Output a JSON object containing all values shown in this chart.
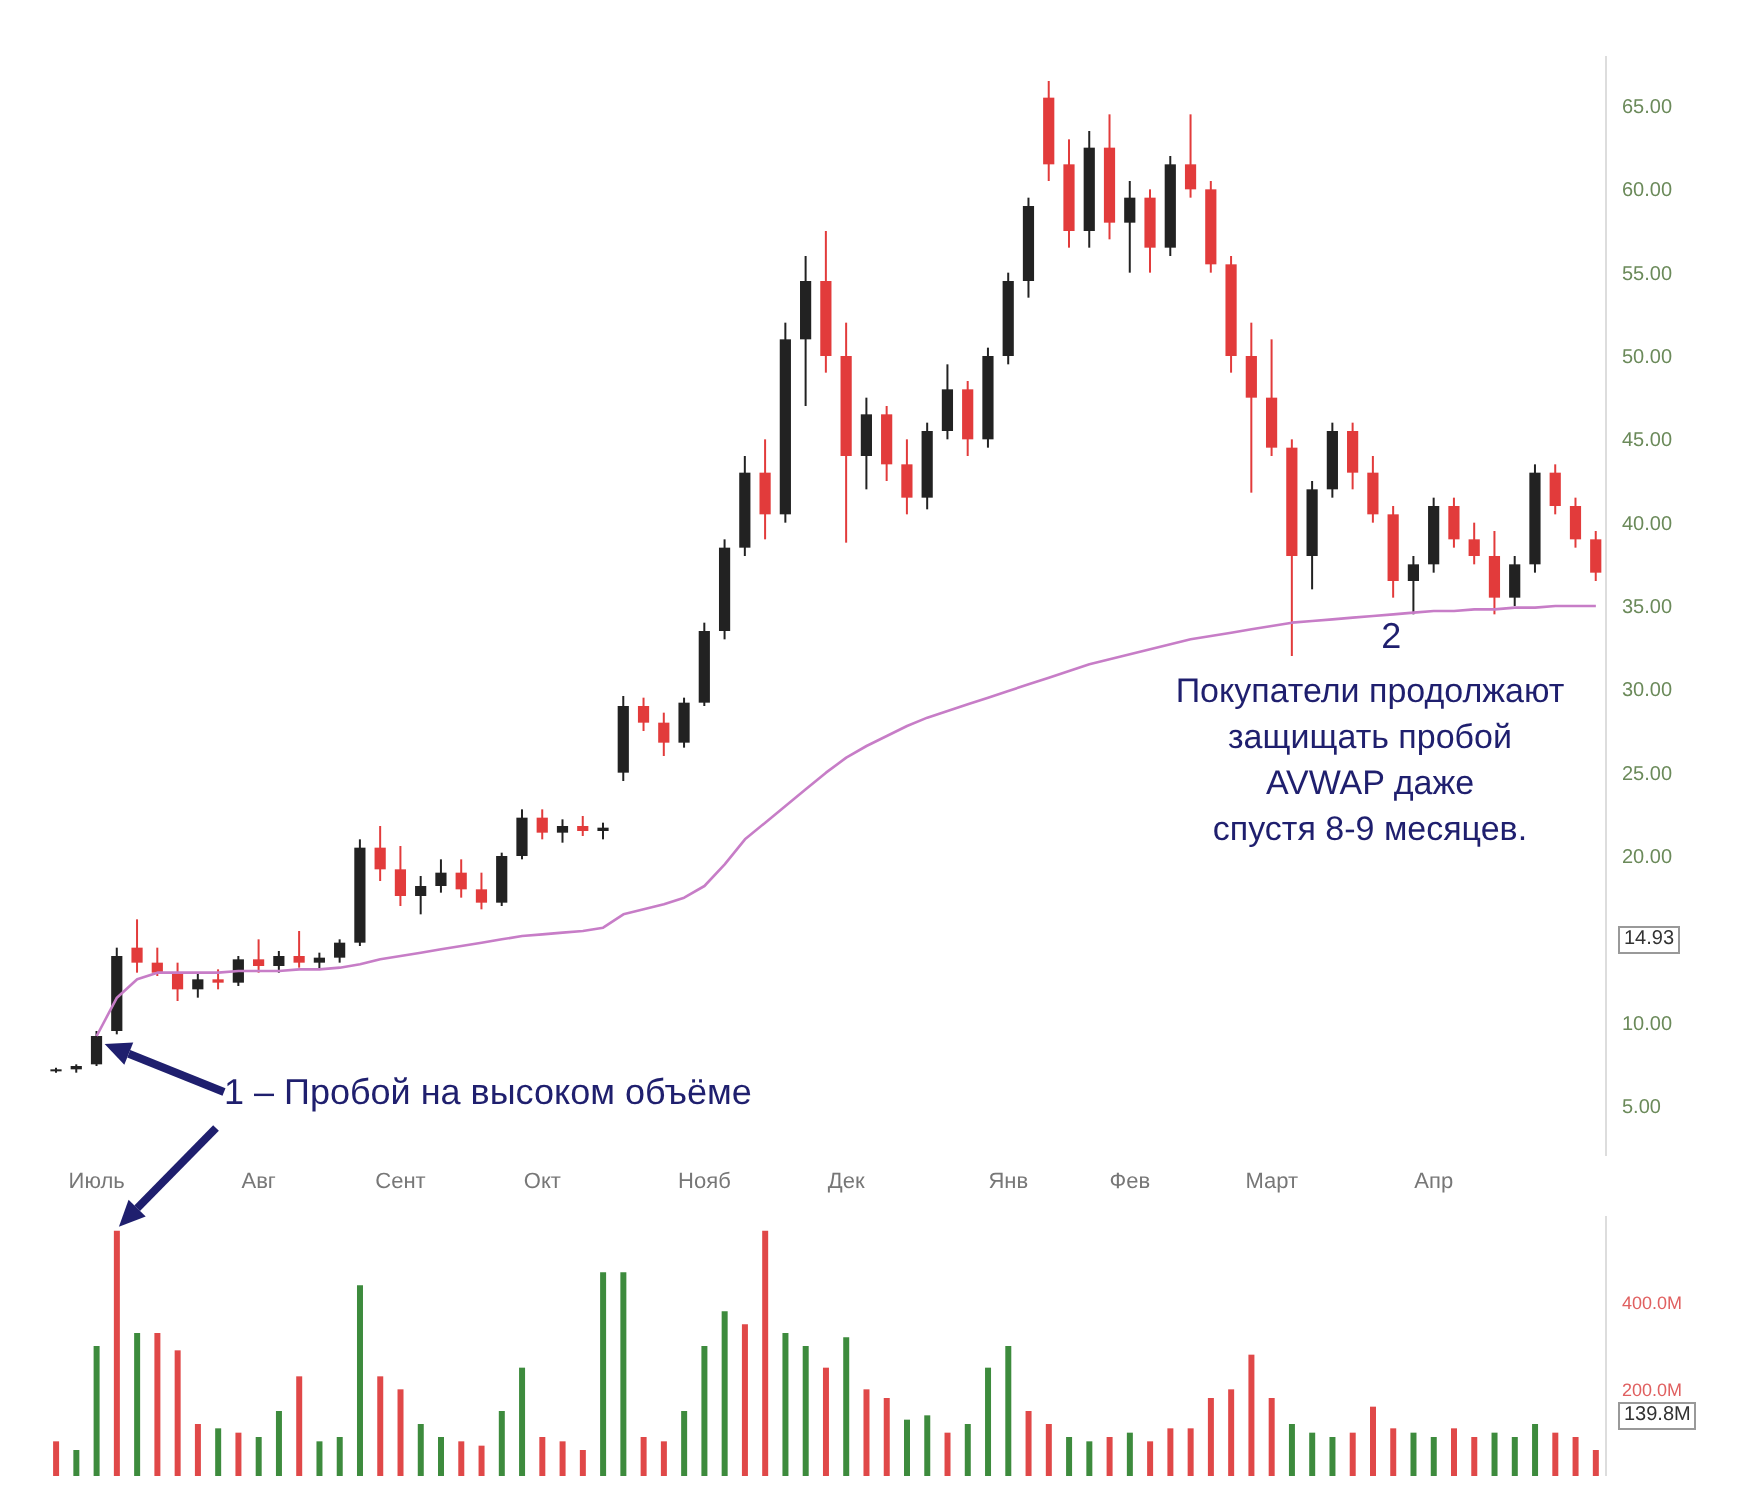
{
  "chart_data": [
    {
      "type": "candlestick",
      "categories": [
        null,
        null,
        "Июль",
        null,
        null,
        null,
        null,
        null,
        null,
        null,
        "Авг",
        null,
        null,
        null,
        null,
        null,
        null,
        "Сент",
        null,
        null,
        null,
        null,
        null,
        null,
        "Окт",
        null,
        null,
        null,
        null,
        null,
        null,
        null,
        "Нояб",
        null,
        null,
        null,
        null,
        null,
        null,
        "Дек",
        null,
        null,
        null,
        null,
        null,
        null,
        null,
        "Янв",
        null,
        null,
        null,
        null,
        null,
        "Фев",
        null,
        null,
        null,
        null,
        null,
        null,
        "Март",
        null,
        null,
        null,
        null,
        null,
        null,
        null,
        "Апр",
        null,
        null,
        null,
        null,
        null,
        null,
        null,
        null
      ],
      "ohlc": [
        [
          7.1,
          7.3,
          7.0,
          7.2
        ],
        [
          7.2,
          7.5,
          7.0,
          7.4
        ],
        [
          7.5,
          9.5,
          7.4,
          9.2
        ],
        [
          9.5,
          14.5,
          9.3,
          14.0
        ],
        [
          14.5,
          16.2,
          13.0,
          13.6
        ],
        [
          13.6,
          14.5,
          12.8,
          13.0
        ],
        [
          13.0,
          13.6,
          11.3,
          12.0
        ],
        [
          12.0,
          13.0,
          11.5,
          12.6
        ],
        [
          12.6,
          13.2,
          12.0,
          12.4
        ],
        [
          12.4,
          14.0,
          12.2,
          13.8
        ],
        [
          13.8,
          15.0,
          13.0,
          13.4
        ],
        [
          13.4,
          14.3,
          13.0,
          14.0
        ],
        [
          14.0,
          15.5,
          13.3,
          13.6
        ],
        [
          13.6,
          14.2,
          13.2,
          13.9
        ],
        [
          13.9,
          15.0,
          13.6,
          14.8
        ],
        [
          14.8,
          21.0,
          14.6,
          20.5
        ],
        [
          20.5,
          21.8,
          18.5,
          19.2
        ],
        [
          19.2,
          20.6,
          17.0,
          17.6
        ],
        [
          17.6,
          18.8,
          16.5,
          18.2
        ],
        [
          18.2,
          19.8,
          17.8,
          19.0
        ],
        [
          19.0,
          19.8,
          17.5,
          18.0
        ],
        [
          18.0,
          19.0,
          16.8,
          17.2
        ],
        [
          17.2,
          20.2,
          17.0,
          20.0
        ],
        [
          20.0,
          22.8,
          19.8,
          22.3
        ],
        [
          22.3,
          22.8,
          21.0,
          21.4
        ],
        [
          21.4,
          22.2,
          20.8,
          21.8
        ],
        [
          21.8,
          22.4,
          21.2,
          21.5
        ],
        [
          21.5,
          22.0,
          21.0,
          21.7
        ],
        [
          25.0,
          29.6,
          24.5,
          29.0
        ],
        [
          29.0,
          29.5,
          27.5,
          28.0
        ],
        [
          28.0,
          28.6,
          26.0,
          26.8
        ],
        [
          26.8,
          29.5,
          26.5,
          29.2
        ],
        [
          29.2,
          34.0,
          29.0,
          33.5
        ],
        [
          33.5,
          39.0,
          33.0,
          38.5
        ],
        [
          38.5,
          44.0,
          38.0,
          43.0
        ],
        [
          43.0,
          45.0,
          39.0,
          40.5
        ],
        [
          40.5,
          52.0,
          40.0,
          51.0
        ],
        [
          51.0,
          56.0,
          47.0,
          54.5
        ],
        [
          54.5,
          57.5,
          49.0,
          50.0
        ],
        [
          50.0,
          52.0,
          38.8,
          44.0
        ],
        [
          44.0,
          47.5,
          42.0,
          46.5
        ],
        [
          46.5,
          47.0,
          42.5,
          43.5
        ],
        [
          43.5,
          45.0,
          40.5,
          41.5
        ],
        [
          41.5,
          46.0,
          40.8,
          45.5
        ],
        [
          45.5,
          49.5,
          45.0,
          48.0
        ],
        [
          48.0,
          48.5,
          44.0,
          45.0
        ],
        [
          45.0,
          50.5,
          44.5,
          50.0
        ],
        [
          50.0,
          55.0,
          49.5,
          54.5
        ],
        [
          54.5,
          59.5,
          53.5,
          59.0
        ],
        [
          65.5,
          66.5,
          60.5,
          61.5
        ],
        [
          61.5,
          63.0,
          56.5,
          57.5
        ],
        [
          57.5,
          63.5,
          56.5,
          62.5
        ],
        [
          62.5,
          64.5,
          57.0,
          58.0
        ],
        [
          58.0,
          60.5,
          55.0,
          59.5
        ],
        [
          59.5,
          60.0,
          55.0,
          56.5
        ],
        [
          56.5,
          62.0,
          56.0,
          61.5
        ],
        [
          61.5,
          64.5,
          59.5,
          60.0
        ],
        [
          60.0,
          60.5,
          55.0,
          55.5
        ],
        [
          55.5,
          56.0,
          49.0,
          50.0
        ],
        [
          50.0,
          52.0,
          41.8,
          47.5
        ],
        [
          47.5,
          51.0,
          44.0,
          44.5
        ],
        [
          44.5,
          45.0,
          32.0,
          38.0
        ],
        [
          38.0,
          42.5,
          36.0,
          42.0
        ],
        [
          42.0,
          46.0,
          41.5,
          45.5
        ],
        [
          45.5,
          46.0,
          42.0,
          43.0
        ],
        [
          43.0,
          44.0,
          40.0,
          40.5
        ],
        [
          40.5,
          41.0,
          35.5,
          36.5
        ],
        [
          36.5,
          38.0,
          34.5,
          37.5
        ],
        [
          37.5,
          41.5,
          37.0,
          41.0
        ],
        [
          41.0,
          41.5,
          38.5,
          39.0
        ],
        [
          39.0,
          40.0,
          37.5,
          38.0
        ],
        [
          38.0,
          39.5,
          34.5,
          35.5
        ],
        [
          35.5,
          38.0,
          35.0,
          37.5
        ],
        [
          37.5,
          43.5,
          37.0,
          43.0
        ],
        [
          43.0,
          43.5,
          40.5,
          41.0
        ],
        [
          41.0,
          41.5,
          38.5,
          39.0
        ],
        [
          39.0,
          39.5,
          36.5,
          37.0
        ]
      ],
      "colors": [
        "#222222",
        "#222222",
        "#222222",
        "#222222",
        "#e23b3b",
        "#e23b3b",
        "#e23b3b",
        "#222222",
        "#e23b3b",
        "#222222",
        "#e23b3b",
        "#222222",
        "#e23b3b",
        "#222222",
        "#222222",
        "#222222",
        "#e23b3b",
        "#e23b3b",
        "#222222",
        "#222222",
        "#e23b3b",
        "#e23b3b",
        "#222222",
        "#222222",
        "#e23b3b",
        "#222222",
        "#e23b3b",
        "#222222",
        "#222222",
        "#e23b3b",
        "#e23b3b",
        "#222222",
        "#222222",
        "#222222",
        "#222222",
        "#e23b3b",
        "#222222",
        "#222222",
        "#e23b3b",
        "#e23b3b",
        "#222222",
        "#e23b3b",
        "#e23b3b",
        "#222222",
        "#222222",
        "#e23b3b",
        "#222222",
        "#222222",
        "#222222",
        "#e23b3b",
        "#e23b3b",
        "#222222",
        "#e23b3b",
        "#222222",
        "#e23b3b",
        "#222222",
        "#e23b3b",
        "#e23b3b",
        "#e23b3b",
        "#e23b3b",
        "#e23b3b",
        "#e23b3b",
        "#222222",
        "#222222",
        "#e23b3b",
        "#e23b3b",
        "#e23b3b",
        "#222222",
        "#222222",
        "#e23b3b",
        "#e23b3b",
        "#e23b3b",
        "#222222",
        "#222222",
        "#e23b3b",
        "#e23b3b",
        "#e23b3b"
      ],
      "series": [
        {
          "type": "line",
          "color": "#c77dc7",
          "values": [
            null,
            null,
            9.2,
            11.5,
            12.6,
            13.0,
            13.0,
            13.0,
            13.0,
            13.1,
            13.1,
            13.1,
            13.2,
            13.2,
            13.3,
            13.5,
            13.8,
            14.0,
            14.2,
            14.4,
            14.6,
            14.8,
            15.0,
            15.2,
            15.3,
            15.4,
            15.5,
            15.7,
            16.5,
            16.8,
            17.1,
            17.5,
            18.2,
            19.5,
            21.0,
            22.0,
            23.0,
            24.0,
            25.0,
            25.9,
            26.6,
            27.2,
            27.8,
            28.3,
            28.7,
            29.1,
            29.5,
            29.9,
            30.3,
            30.7,
            31.1,
            31.5,
            31.8,
            32.1,
            32.4,
            32.7,
            33.0,
            33.2,
            33.4,
            33.6,
            33.8,
            34.0,
            34.1,
            34.2,
            34.3,
            34.4,
            34.5,
            34.6,
            34.7,
            34.7,
            34.8,
            34.8,
            34.9,
            34.9,
            35.0,
            35.0,
            35.0
          ]
        }
      ],
      "ylim": [
        2,
        68
      ],
      "yticks": [
        {
          "value": 5,
          "label": "5.00"
        },
        {
          "value": 10,
          "label": "10.00"
        },
        {
          "value": 20,
          "label": "20.00"
        },
        {
          "value": 25,
          "label": "25.00"
        },
        {
          "value": 30,
          "label": "30.00"
        },
        {
          "value": 35,
          "label": "35.00"
        },
        {
          "value": 40,
          "label": "40.00"
        },
        {
          "value": 45,
          "label": "45.00"
        },
        {
          "value": 50,
          "label": "50.00"
        },
        {
          "value": 55,
          "label": "55.00"
        },
        {
          "value": 60,
          "label": "60.00"
        },
        {
          "value": 65,
          "label": "65.00"
        }
      ],
      "annotations": [
        "1 – Пробой на высоком объёме",
        {
          "text": "2",
          "y": 35
        },
        "Покупатели продолжают\nзащищать пробой\nAVWAP даже\nспустя 8-9 месяцев.",
        "14.93"
      ]
    },
    {
      "type": "bar",
      "categories": [
        null,
        null,
        null,
        null,
        null,
        null,
        null,
        null,
        null,
        null,
        null,
        null,
        null,
        null,
        null,
        null,
        null,
        null,
        null,
        null,
        null,
        null,
        null,
        null,
        null,
        null,
        null,
        null,
        null,
        null,
        null,
        null,
        null,
        null,
        null,
        null,
        null,
        null,
        null,
        null,
        null,
        null,
        null,
        null,
        null,
        null,
        null,
        null,
        null,
        null,
        null,
        null,
        null,
        null,
        null,
        null,
        null,
        null,
        null,
        null,
        null,
        null,
        null,
        null,
        null,
        null,
        null,
        null,
        null,
        null,
        null,
        null,
        null,
        null,
        null,
        null,
        null
      ],
      "values": [
        80,
        60,
        300,
        566,
        330,
        330,
        290,
        120,
        110,
        100,
        90,
        150,
        230,
        80,
        90,
        440,
        230,
        200,
        120,
        90,
        80,
        70,
        150,
        250,
        90,
        80,
        60,
        470,
        470,
        90,
        80,
        150,
        300,
        380,
        350,
        566,
        330,
        300,
        250,
        320,
        200,
        180,
        130,
        140,
        100,
        120,
        250,
        300,
        150,
        120,
        90,
        80,
        90,
        100,
        80,
        110,
        110,
        180,
        200,
        280,
        180,
        120,
        100,
        90,
        100,
        160,
        110,
        100,
        90,
        110,
        90,
        100,
        90,
        120,
        100,
        90,
        60
      ],
      "colors": [
        "#e04848",
        "#3d8b3d",
        "#3d8b3d",
        "#e04848",
        "#3d8b3d",
        "#e04848",
        "#e04848",
        "#e04848",
        "#3d8b3d",
        "#e04848",
        "#3d8b3d",
        "#3d8b3d",
        "#e04848",
        "#3d8b3d",
        "#3d8b3d",
        "#3d8b3d",
        "#e04848",
        "#e04848",
        "#3d8b3d",
        "#3d8b3d",
        "#e04848",
        "#e04848",
        "#3d8b3d",
        "#3d8b3d",
        "#e04848",
        "#e04848",
        "#e04848",
        "#3d8b3d",
        "#3d8b3d",
        "#e04848",
        "#e04848",
        "#3d8b3d",
        "#3d8b3d",
        "#3d8b3d",
        "#e04848",
        "#e04848",
        "#3d8b3d",
        "#3d8b3d",
        "#e04848",
        "#3d8b3d",
        "#e04848",
        "#e04848",
        "#3d8b3d",
        "#3d8b3d",
        "#e04848",
        "#3d8b3d",
        "#3d8b3d",
        "#3d8b3d",
        "#e04848",
        "#e04848",
        "#3d8b3d",
        "#3d8b3d",
        "#e04848",
        "#3d8b3d",
        "#e04848",
        "#e04848",
        "#e04848",
        "#e04848",
        "#e04848",
        "#e04848",
        "#e04848",
        "#3d8b3d",
        "#3d8b3d",
        "#3d8b3d",
        "#e04848",
        "#e04848",
        "#e04848",
        "#3d8b3d",
        "#3d8b3d",
        "#e04848",
        "#e04848",
        "#3d8b3d",
        "#3d8b3d",
        "#3d8b3d",
        "#e04848",
        "#e04848",
        "#e04848"
      ],
      "ylim": [
        0,
        600
      ],
      "yticks": [
        {
          "value": 200,
          "label": "200.0M"
        },
        {
          "value": 400,
          "label": "400.0M"
        }
      ],
      "tick_labels": "y",
      "annotations": [
        "139.8M"
      ]
    }
  ]
}
